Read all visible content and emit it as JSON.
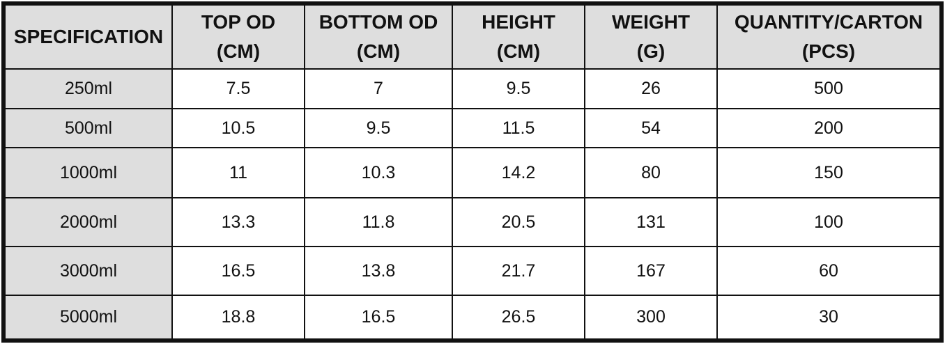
{
  "table": {
    "header": [
      [
        "SPECIFICATION"
      ],
      [
        "TOP OD",
        "(CM)"
      ],
      [
        "BOTTOM OD",
        "(CM)"
      ],
      [
        "HEIGHT",
        "(CM)"
      ],
      [
        "WEIGHT",
        "(G)"
      ],
      [
        "QUANTITY/CARTON",
        "(PCS)"
      ]
    ],
    "rows": [
      [
        "250ml",
        "7.5",
        "7",
        "9.5",
        "26",
        "500"
      ],
      [
        "500ml",
        "10.5",
        "9.5",
        "11.5",
        "54",
        "200"
      ],
      [
        "1000ml",
        "11",
        "10.3",
        "14.2",
        "80",
        "150"
      ],
      [
        "2000ml",
        "13.3",
        "11.8",
        "20.5",
        "131",
        "100"
      ],
      [
        "3000ml",
        "16.5",
        "13.8",
        "21.7",
        "167",
        "60"
      ],
      [
        "5000ml",
        "18.8",
        "16.5",
        "26.5",
        "300",
        "30"
      ]
    ]
  }
}
